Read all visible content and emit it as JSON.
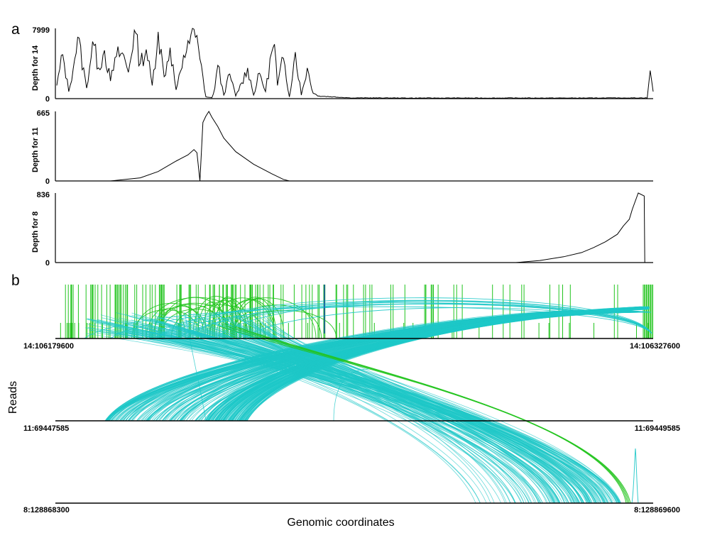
{
  "panel_labels": {
    "a": "a",
    "b": "b"
  },
  "colors": {
    "depth_line": "#000000",
    "read_cyan": "#1ec8c8",
    "read_green": "#22c41e",
    "read_blue": "#1a2fcc",
    "axis": "#000000"
  },
  "chart_data": [
    {
      "type": "line",
      "panel": "a",
      "ylabel": "Depth for 14",
      "ylim": [
        0,
        7999
      ],
      "yticks": [
        "0",
        "7999"
      ],
      "x": [
        0,
        0.01,
        0.02,
        0.03,
        0.035,
        0.05,
        0.06,
        0.07,
        0.08,
        0.09,
        0.1,
        0.11,
        0.12,
        0.13,
        0.14,
        0.15,
        0.16,
        0.17,
        0.18,
        0.19,
        0.2,
        0.21,
        0.22,
        0.23,
        0.24,
        0.25,
        0.26,
        0.265,
        0.27,
        0.28,
        0.29,
        0.3,
        0.31,
        0.32,
        0.33,
        0.34,
        0.35,
        0.36,
        0.365,
        0.37,
        0.38,
        0.39,
        0.4,
        0.41,
        0.42,
        0.43,
        0.44,
        0.5,
        0.6,
        0.7,
        0.8,
        0.9,
        0.99,
        0.995,
        1.0
      ],
      "values": [
        1500,
        5000,
        800,
        4500,
        7000,
        1200,
        6500,
        3500,
        5500,
        2000,
        4800,
        5200,
        3000,
        7800,
        4000,
        5600,
        1500,
        7600,
        2500,
        5800,
        1000,
        3500,
        6600,
        7900,
        4500,
        200,
        100,
        1200,
        3800,
        400,
        2800,
        300,
        1800,
        3500,
        400,
        2900,
        800,
        5200,
        6200,
        1500,
        4600,
        200,
        5300,
        400,
        3500,
        600,
        300,
        60,
        40,
        40,
        40,
        40,
        60,
        3200,
        800
      ]
    },
    {
      "type": "line",
      "panel": "a",
      "ylabel": "Depth for 11",
      "ylim": [
        0,
        665
      ],
      "yticks": [
        "0",
        "665"
      ],
      "x": [
        0,
        0.09,
        0.14,
        0.17,
        0.2,
        0.22,
        0.23,
        0.235,
        0.24,
        0.245,
        0.25,
        0.255,
        0.26,
        0.27,
        0.28,
        0.3,
        0.33,
        0.36,
        0.38,
        0.39,
        1.0
      ],
      "values": [
        0,
        0,
        30,
        90,
        190,
        250,
        300,
        270,
        0,
        560,
        620,
        665,
        610,
        520,
        410,
        280,
        160,
        70,
        15,
        0,
        0
      ],
      "gap_at_x": 0.241
    },
    {
      "type": "line",
      "panel": "a",
      "ylabel": "Depth for 8",
      "ylim": [
        0,
        836
      ],
      "yticks": [
        "0",
        "836"
      ],
      "x": [
        0,
        0.77,
        0.81,
        0.85,
        0.88,
        0.9,
        0.92,
        0.94,
        0.95,
        0.96,
        0.965,
        0.975,
        0.985,
        0.986,
        1.0
      ],
      "values": [
        0,
        0,
        25,
        70,
        120,
        180,
        250,
        340,
        440,
        520,
        640,
        836,
        800,
        0,
        0
      ]
    },
    {
      "type": "arc-diagram",
      "panel": "b",
      "ylabel": "Reads",
      "xlabel": "Genomic coordinates",
      "tracks": [
        {
          "start_label": "14:106179600",
          "end_label": "14:106327600"
        },
        {
          "start_label": "11:69447585",
          "end_label": "11:69449585"
        },
        {
          "start_label": "8:128868300",
          "end_label": "8:128869600"
        }
      ]
    }
  ]
}
